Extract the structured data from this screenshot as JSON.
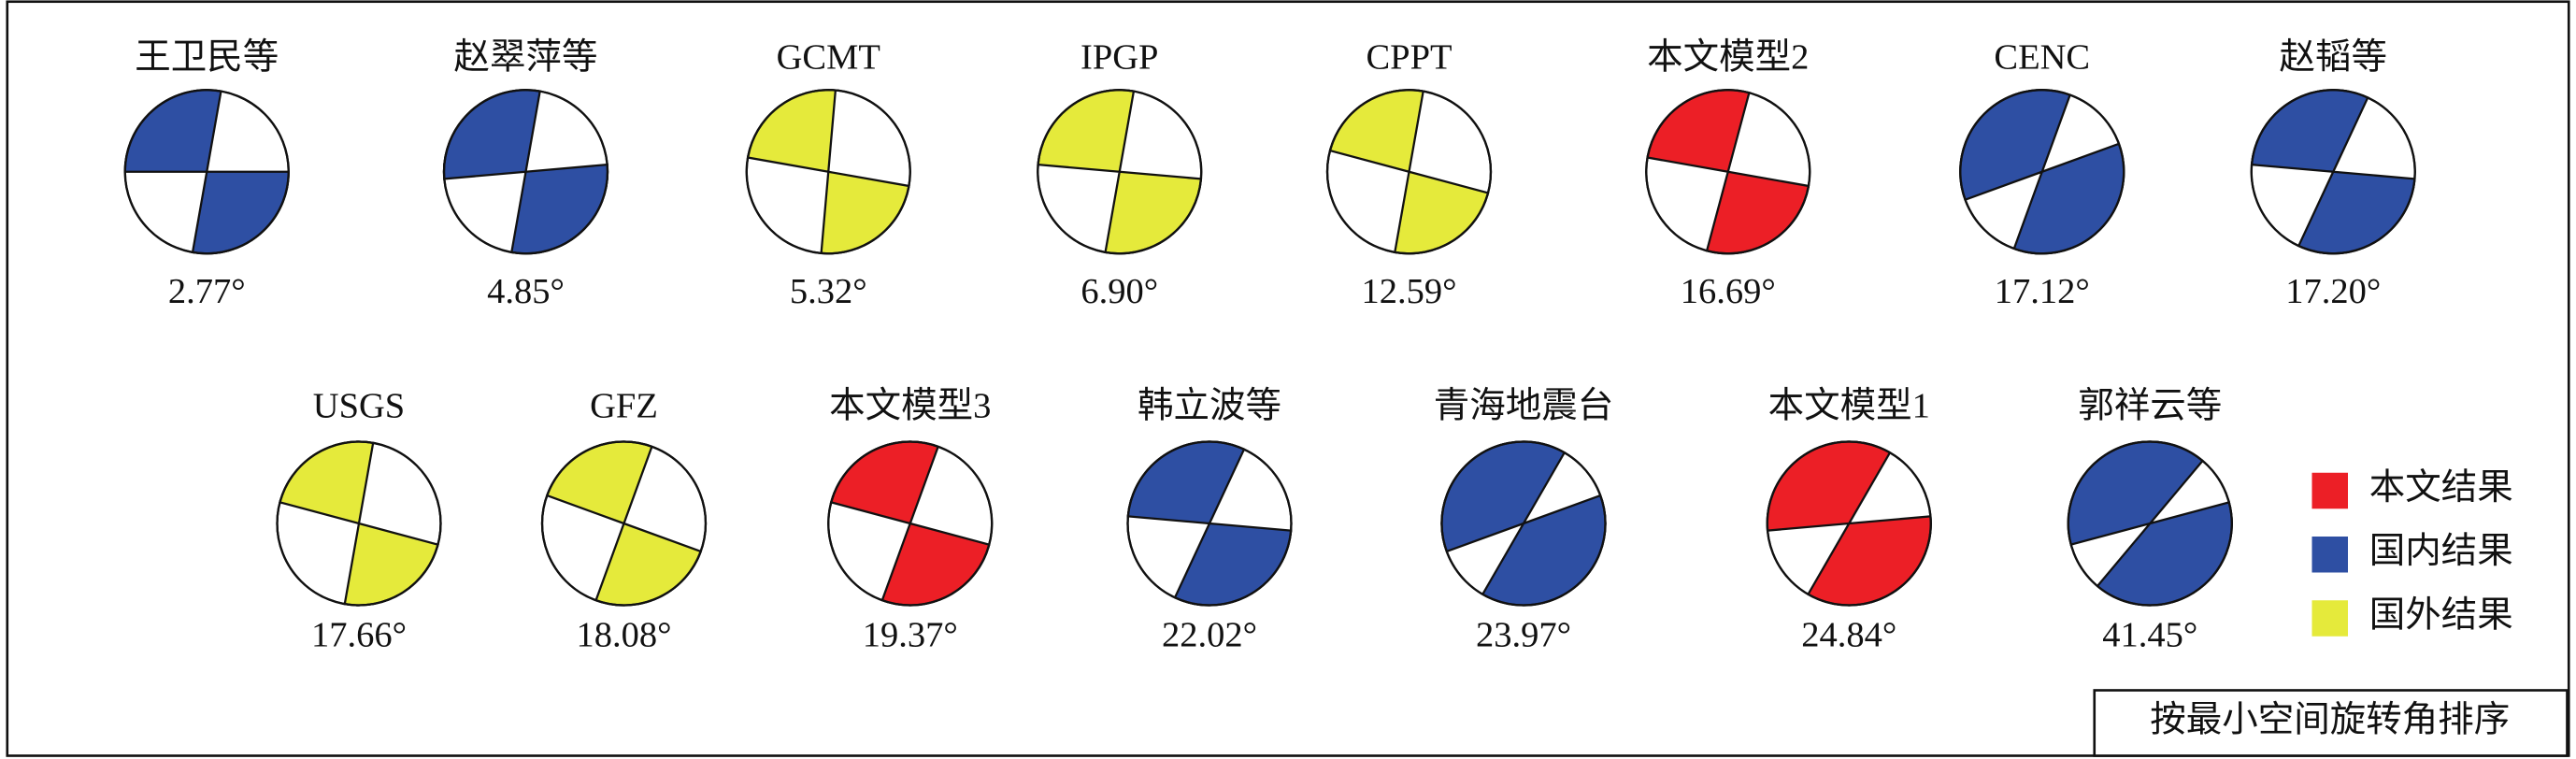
{
  "rows": [
    {
      "items": [
        {
          "label": "王卫民等",
          "angle": "2.77°",
          "color": "#2e4fa3"
        },
        {
          "label": "赵翠萍等",
          "angle": "4.85°",
          "color": "#2e4fa3"
        },
        {
          "label": "GCMT",
          "angle": "5.32°",
          "color": "#e5ea3b"
        },
        {
          "label": "IPGP",
          "angle": "6.90°",
          "color": "#e5ea3b"
        },
        {
          "label": "CPPT",
          "angle": "12.59°",
          "color": "#e5ea3b"
        },
        {
          "label": "本文模型2",
          "angle": "16.69°",
          "color": "#ec1f26"
        },
        {
          "label": "CENC",
          "angle": "17.12°",
          "color": "#2e4fa3"
        },
        {
          "label": "赵韬等",
          "angle": "17.20°",
          "color": "#2e4fa3"
        }
      ]
    },
    {
      "items": [
        {
          "label": "USGS",
          "angle": "17.66°",
          "color": "#e5ea3b"
        },
        {
          "label": "GFZ",
          "angle": "18.08°",
          "color": "#e5ea3b"
        },
        {
          "label": "本文模型3",
          "angle": "19.37°",
          "color": "#ec1f26"
        },
        {
          "label": "韩立波等",
          "angle": "22.02°",
          "color": "#2e4fa3"
        },
        {
          "label": "青海地震台",
          "angle": "23.97°",
          "color": "#2e4fa3"
        },
        {
          "label": "本文模型1",
          "angle": "24.84°",
          "color": "#ec1f26"
        },
        {
          "label": "郭祥云等",
          "angle": "41.45°",
          "color": "#2e4fa3"
        }
      ]
    }
  ],
  "legend": [
    {
      "label": "本文结果",
      "color": "#ec1f26"
    },
    {
      "label": "国内结果",
      "color": "#2e4fa3"
    },
    {
      "label": "国外结果",
      "color": "#e5ea3b"
    }
  ],
  "caption": "按最小空间旋转角排序"
}
